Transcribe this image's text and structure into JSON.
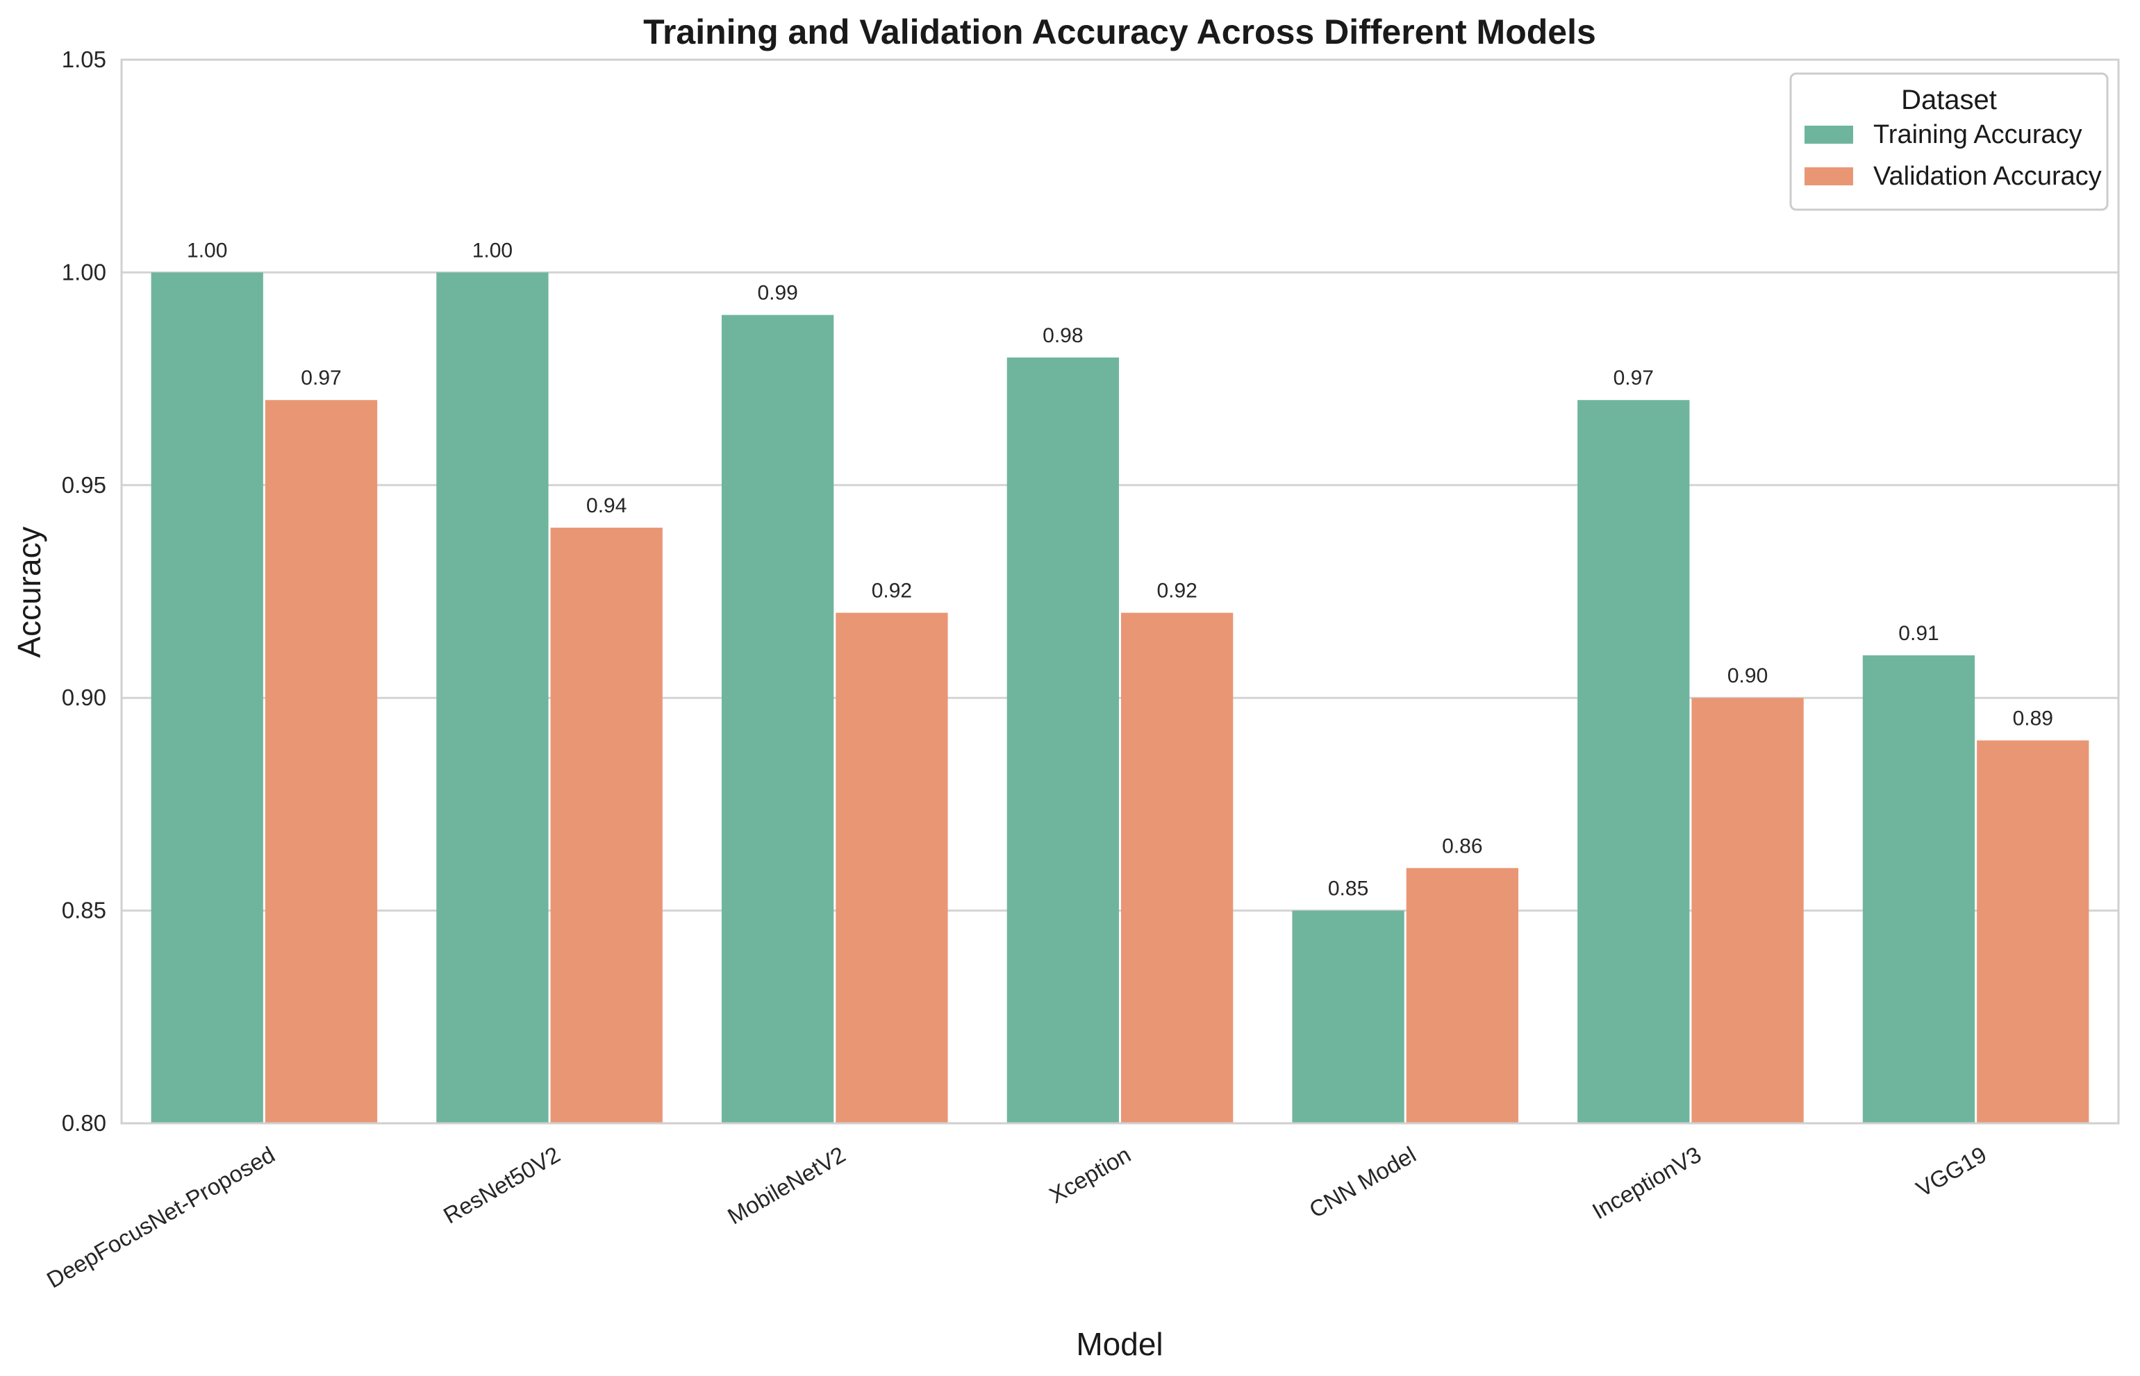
{
  "chart_data": {
    "type": "bar",
    "title": "Training and Validation Accuracy Across Different Models",
    "xlabel": "Model",
    "ylabel": "Accuracy",
    "ylim": [
      0.8,
      1.05
    ],
    "yticks": [
      "0.80",
      "0.85",
      "0.90",
      "0.95",
      "1.00",
      "1.05"
    ],
    "categories": [
      "DeepFocusNet-Proposed",
      "ResNet50V2",
      "MobileNetV2",
      "Xception",
      "CNN Model",
      "InceptionV3",
      "VGG19"
    ],
    "series": [
      {
        "name": "Training Accuracy",
        "color": "#6fb59e",
        "values": [
          1.0,
          1.0,
          0.99,
          0.98,
          0.85,
          0.97,
          0.91
        ],
        "labels": [
          "1.00",
          "1.00",
          "0.99",
          "0.98",
          "0.85",
          "0.97",
          "0.91"
        ]
      },
      {
        "name": "Validation Accuracy",
        "color": "#e99675",
        "values": [
          0.97,
          0.94,
          0.92,
          0.92,
          0.86,
          0.9,
          0.89
        ],
        "labels": [
          "0.97",
          "0.94",
          "0.92",
          "0.92",
          "0.86",
          "0.90",
          "0.89"
        ]
      }
    ],
    "grid": "horizontal",
    "legend": {
      "title": "Dataset",
      "placement": "top-right"
    }
  }
}
